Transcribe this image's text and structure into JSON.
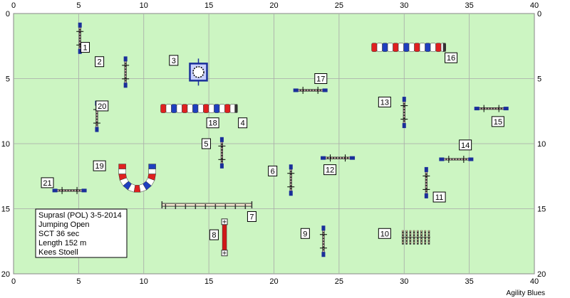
{
  "arena": {
    "x_range": [
      0,
      40
    ],
    "y_range": [
      0,
      20
    ],
    "x_ticks": [
      "0",
      "5",
      "10",
      "15",
      "20",
      "25",
      "30",
      "35",
      "40"
    ],
    "y_ticks": [
      "0",
      "5",
      "10",
      "15",
      "20"
    ],
    "background_color": "#ccf5c2",
    "grid_color": "#a8a8a8"
  },
  "info_box": {
    "lines": [
      "Suprasl (POL) 3-5-2014",
      "Jumping Open",
      "SCT 36 sec",
      "Length 152 m",
      "Kees Stoell"
    ]
  },
  "footer": {
    "credit": "Agility Blues"
  },
  "obstacles": [
    {
      "number": "1",
      "type": "jump-vertical",
      "x": 5.1,
      "y": 1.9,
      "label_at": [
        5.5,
        2.6
      ]
    },
    {
      "number": "2",
      "type": "jump-vertical",
      "x": 8.6,
      "y": 4.5,
      "label_at": [
        6.6,
        3.7
      ]
    },
    {
      "number": "3",
      "type": "tire",
      "x": 14.2,
      "y": 4.5,
      "label_at": [
        12.3,
        3.6
      ]
    },
    {
      "number": "4",
      "type": "tunnel-straight",
      "x1": 11.3,
      "x2": 17.2,
      "y": 7.3,
      "label_at": [
        17.6,
        8.4
      ]
    },
    {
      "number": "5",
      "type": "jump-vertical",
      "x": 16.0,
      "y": 10.7,
      "label_at": [
        14.8,
        10.0
      ]
    },
    {
      "number": "6",
      "type": "jump-vertical",
      "x": 21.3,
      "y": 12.8,
      "label_at": [
        19.9,
        12.1
      ]
    },
    {
      "number": "7",
      "type": "wall",
      "x1": 11.4,
      "x2": 18.3,
      "y": 14.7,
      "label_at": [
        18.3,
        15.6
      ]
    },
    {
      "number": "8",
      "type": "dogwalk",
      "x": 16.2,
      "y1": 16.0,
      "y2": 18.4,
      "label_at": [
        15.4,
        17.0
      ]
    },
    {
      "number": "9",
      "type": "jump-vertical",
      "x": 23.8,
      "y": 17.5,
      "label_at": [
        22.4,
        16.9
      ]
    },
    {
      "number": "10",
      "type": "weave-poles",
      "x1": 29.9,
      "x2": 31.9,
      "y": 17.2,
      "label_at": [
        28.5,
        16.9
      ]
    },
    {
      "number": "11",
      "type": "jump-vertical",
      "x": 31.7,
      "y": 13.0,
      "label_at": [
        32.7,
        14.1
      ]
    },
    {
      "number": "12",
      "type": "jump-horizontal",
      "x": 24.9,
      "y": 11.1,
      "label_at": [
        24.3,
        12.0
      ]
    },
    {
      "number": "13",
      "type": "jump-vertical",
      "x": 30.0,
      "y": 7.6,
      "label_at": [
        28.5,
        6.8
      ]
    },
    {
      "number": "14",
      "type": "jump-horizontal",
      "x": 34.0,
      "y": 11.2,
      "label_at": [
        34.7,
        10.1
      ]
    },
    {
      "number": "15",
      "type": "jump-horizontal",
      "x": 36.7,
      "y": 7.3,
      "label_at": [
        37.2,
        8.3
      ]
    },
    {
      "number": "16",
      "type": "tunnel-straight",
      "x1": 27.5,
      "x2": 33.2,
      "y": 2.6,
      "label_at": [
        33.6,
        3.4
      ]
    },
    {
      "number": "17",
      "type": "jump-horizontal",
      "x": 22.8,
      "y": 5.9,
      "label_at": [
        23.6,
        5.0
      ]
    },
    {
      "number": "18",
      "type": "label-only",
      "label_at": [
        15.3,
        8.4
      ]
    },
    {
      "number": "19",
      "type": "tunnel-curved",
      "x": 9.5,
      "y": 12.0,
      "label_at": [
        6.6,
        11.7
      ]
    },
    {
      "number": "20",
      "type": "jump-vertical",
      "x": 6.4,
      "y": 7.9,
      "label_at": [
        6.8,
        7.1
      ]
    },
    {
      "number": "21",
      "type": "jump-horizontal",
      "x": 4.3,
      "y": 13.6,
      "label_at": [
        2.6,
        13.0
      ]
    }
  ]
}
